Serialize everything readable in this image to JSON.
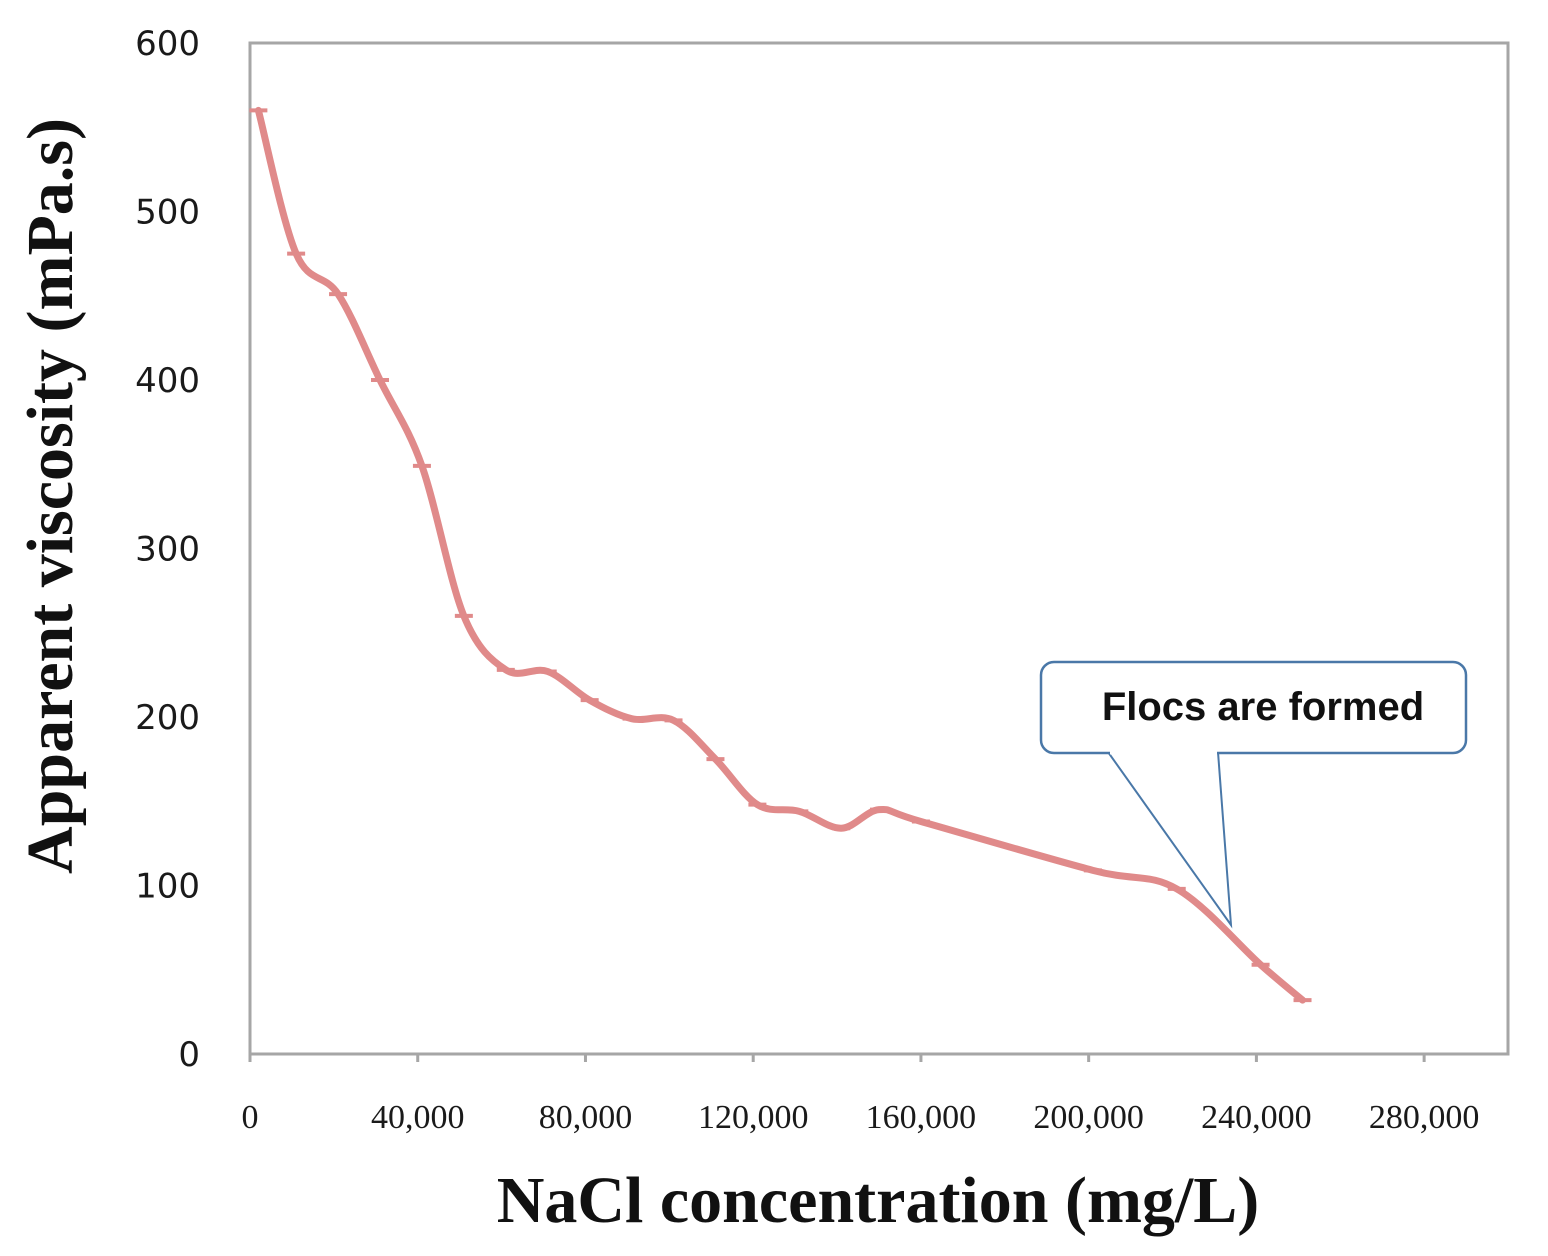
{
  "chart_data": {
    "type": "line",
    "title": "",
    "xlabel": "NaCl concentration (mg/L)",
    "ylabel": "Apparent viscosity (mPa.s)",
    "xlim": [
      0,
      300000
    ],
    "ylim": [
      0,
      600
    ],
    "x_ticks": [
      {
        "value": 0,
        "label": "0"
      },
      {
        "value": 40000,
        "label": "40,000"
      },
      {
        "value": 80000,
        "label": "80,000"
      },
      {
        "value": 120000,
        "label": "120,000"
      },
      {
        "value": 160000,
        "label": "160,000"
      },
      {
        "value": 200000,
        "label": "200,000"
      },
      {
        "value": 240000,
        "label": "240,000"
      },
      {
        "value": 280000,
        "label": "280,000"
      }
    ],
    "y_ticks": [
      {
        "value": 0,
        "label": "0"
      },
      {
        "value": 100,
        "label": "100"
      },
      {
        "value": 200,
        "label": "200"
      },
      {
        "value": 300,
        "label": "300"
      },
      {
        "value": 400,
        "label": "400"
      },
      {
        "value": 500,
        "label": "500"
      },
      {
        "value": 600,
        "label": "600"
      }
    ],
    "grid": false,
    "series": [
      {
        "name": "Apparent viscosity",
        "color": "#e08a8a",
        "x": [
          2000,
          11000,
          21000,
          31000,
          41000,
          51000,
          61000,
          71000,
          81000,
          91000,
          101000,
          111000,
          121000,
          131000,
          141000,
          150000,
          160000,
          201000,
          221000,
          241000,
          251000
        ],
        "y": [
          560,
          475,
          451,
          400,
          349,
          260,
          228,
          227,
          210,
          199,
          198,
          175,
          148,
          144,
          134,
          145,
          138,
          109,
          98,
          53,
          32
        ]
      }
    ],
    "annotations": [
      {
        "text": "Flocs are formed",
        "target_x": 235000,
        "target_y": 77
      }
    ]
  }
}
